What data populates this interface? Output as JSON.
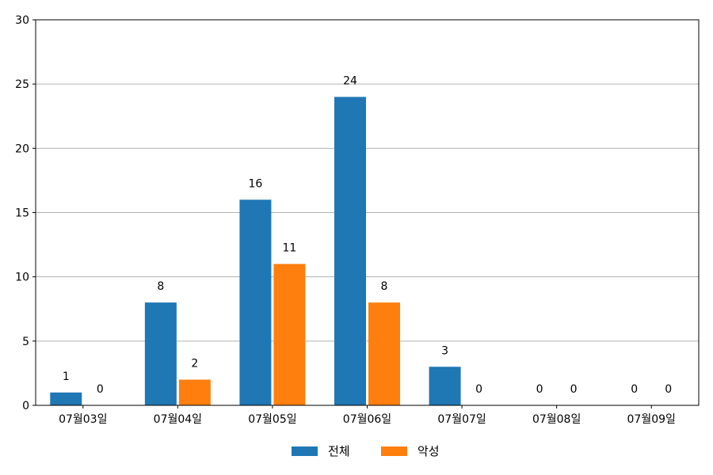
{
  "chart_data": {
    "type": "bar",
    "categories": [
      "07월03일",
      "07월04일",
      "07월05일",
      "07월06일",
      "07월07일",
      "07월08일",
      "07월09일"
    ],
    "series": [
      {
        "name": "전체",
        "values": [
          1,
          8,
          16,
          24,
          3,
          0,
          0
        ],
        "color": "#1f77b4"
      },
      {
        "name": "악성",
        "values": [
          0,
          2,
          11,
          8,
          0,
          0,
          0
        ],
        "color": "#ff7f0e"
      }
    ],
    "ylim": [
      0,
      30
    ],
    "yticks": [
      0,
      5,
      10,
      15,
      20,
      25,
      30
    ],
    "grid": "horizontal",
    "legend_position": "bottom-center"
  }
}
